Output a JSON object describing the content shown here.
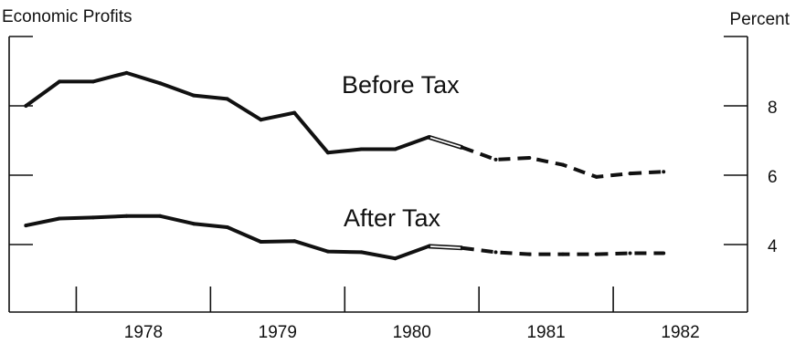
{
  "chart_data": {
    "type": "line",
    "title": "Economic Profits",
    "ylabel": "Percent",
    "x_tick_labels": [
      "1978",
      "1979",
      "1980",
      "1981",
      "1982"
    ],
    "y_ticks": [
      4,
      6,
      8
    ],
    "ylim": [
      2,
      10
    ],
    "xlim": [
      1977.5,
      1983.0
    ],
    "grid": false,
    "series": [
      {
        "name": "Before Tax",
        "x": [
          1977.625,
          1977.875,
          1978.125,
          1978.375,
          1978.625,
          1978.875,
          1979.125,
          1979.375,
          1979.625,
          1979.875,
          1980.125,
          1980.375,
          1980.625,
          1980.875,
          1981.125,
          1981.375,
          1981.625,
          1981.875,
          1982.125,
          1982.375
        ],
        "y": [
          8.0,
          8.7,
          8.7,
          8.95,
          8.65,
          8.3,
          8.2,
          7.6,
          7.8,
          6.65,
          6.75,
          6.75,
          7.1,
          6.8,
          6.45,
          6.5,
          6.3,
          5.95,
          6.05,
          6.1
        ],
        "actual_through": 1980.625,
        "interim_through": 1980.875
      },
      {
        "name": "After Tax",
        "x": [
          1977.625,
          1977.875,
          1978.125,
          1978.375,
          1978.625,
          1978.875,
          1979.125,
          1979.375,
          1979.625,
          1979.875,
          1980.125,
          1980.375,
          1980.625,
          1980.875,
          1981.125,
          1981.375,
          1981.625,
          1981.875,
          1982.125,
          1982.375
        ],
        "y": [
          4.55,
          4.75,
          4.78,
          4.82,
          4.82,
          4.6,
          4.5,
          4.08,
          4.1,
          3.8,
          3.78,
          3.6,
          3.95,
          3.9,
          3.78,
          3.72,
          3.72,
          3.72,
          3.75,
          3.75
        ],
        "actual_through": 1980.625,
        "interim_through": 1980.875
      }
    ],
    "line_color": "#111111"
  }
}
